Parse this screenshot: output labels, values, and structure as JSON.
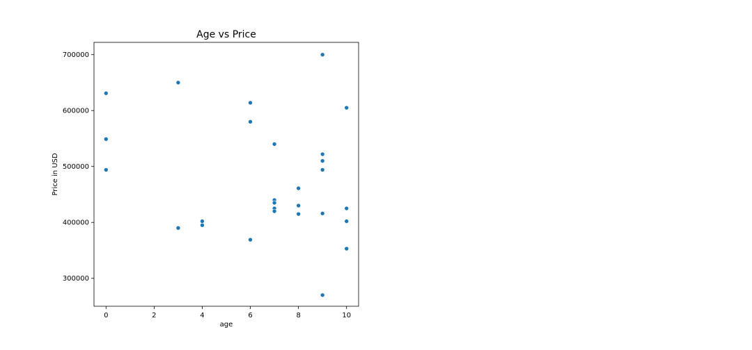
{
  "chart_data": {
    "type": "scatter",
    "title": "Age vs Price",
    "xlabel": "age",
    "ylabel": "Price in USD",
    "xlim": [
      -0.5,
      10.5
    ],
    "ylim": [
      250000,
      722000
    ],
    "xticks": [
      0,
      2,
      4,
      6,
      8,
      10
    ],
    "yticks": [
      300000,
      400000,
      500000,
      600000,
      700000
    ],
    "grid": false,
    "point_color": "#1f77b4",
    "points": [
      {
        "x": 0,
        "y": 631000
      },
      {
        "x": 0,
        "y": 549000
      },
      {
        "x": 0,
        "y": 494000
      },
      {
        "x": 3,
        "y": 650000
      },
      {
        "x": 3,
        "y": 390000
      },
      {
        "x": 4,
        "y": 402000
      },
      {
        "x": 4,
        "y": 395000
      },
      {
        "x": 6,
        "y": 614000
      },
      {
        "x": 6,
        "y": 580000
      },
      {
        "x": 6,
        "y": 369000
      },
      {
        "x": 7,
        "y": 540000
      },
      {
        "x": 7,
        "y": 440000
      },
      {
        "x": 7,
        "y": 435000
      },
      {
        "x": 7,
        "y": 425000
      },
      {
        "x": 7,
        "y": 420000
      },
      {
        "x": 8,
        "y": 461000
      },
      {
        "x": 8,
        "y": 430000
      },
      {
        "x": 8,
        "y": 415000
      },
      {
        "x": 9,
        "y": 700000
      },
      {
        "x": 9,
        "y": 522000
      },
      {
        "x": 9,
        "y": 510000
      },
      {
        "x": 9,
        "y": 494000
      },
      {
        "x": 9,
        "y": 416000
      },
      {
        "x": 9,
        "y": 270000
      },
      {
        "x": 10,
        "y": 605000
      },
      {
        "x": 10,
        "y": 425000
      },
      {
        "x": 10,
        "y": 402000
      },
      {
        "x": 10,
        "y": 353000
      }
    ]
  }
}
